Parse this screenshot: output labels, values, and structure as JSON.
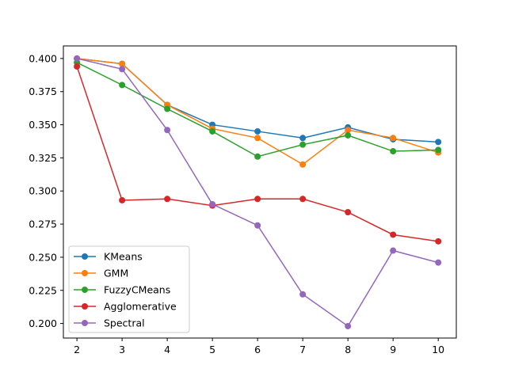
{
  "chart_data": {
    "type": "line",
    "x": [
      2,
      3,
      4,
      5,
      6,
      7,
      8,
      9,
      10
    ],
    "xlim": [
      1.7,
      10.4
    ],
    "ylim": [
      0.189,
      0.4095
    ],
    "xticks": [
      2,
      3,
      4,
      5,
      6,
      7,
      8,
      9,
      10
    ],
    "yticks": [
      0.2,
      0.225,
      0.25,
      0.275,
      0.3,
      0.325,
      0.35,
      0.375,
      0.4
    ],
    "ytick_labels": [
      "0.200",
      "0.225",
      "0.250",
      "0.275",
      "0.300",
      "0.325",
      "0.350",
      "0.375",
      "0.400"
    ],
    "grid": false,
    "legend": "lower-left",
    "series": [
      {
        "name": "KMeans",
        "color": "#1f77b4",
        "values": [
          0.4,
          0.396,
          0.365,
          0.35,
          0.345,
          0.34,
          0.348,
          0.339,
          0.337
        ]
      },
      {
        "name": "GMM",
        "color": "#ff7f0e",
        "values": [
          0.4,
          0.396,
          0.365,
          0.347,
          0.34,
          0.32,
          0.346,
          0.34,
          0.329
        ]
      },
      {
        "name": "FuzzyCMeans",
        "color": "#2ca02c",
        "values": [
          0.397,
          0.38,
          0.362,
          0.345,
          0.326,
          0.335,
          0.342,
          0.33,
          0.331
        ]
      },
      {
        "name": "Agglomerative",
        "color": "#d62728",
        "values": [
          0.394,
          0.293,
          0.294,
          0.289,
          0.294,
          0.294,
          0.284,
          0.267,
          0.262
        ]
      },
      {
        "name": "Spectral",
        "color": "#9467bd",
        "values": [
          0.4,
          0.392,
          0.346,
          0.29,
          0.274,
          0.222,
          0.198,
          0.255,
          0.246
        ]
      }
    ]
  }
}
